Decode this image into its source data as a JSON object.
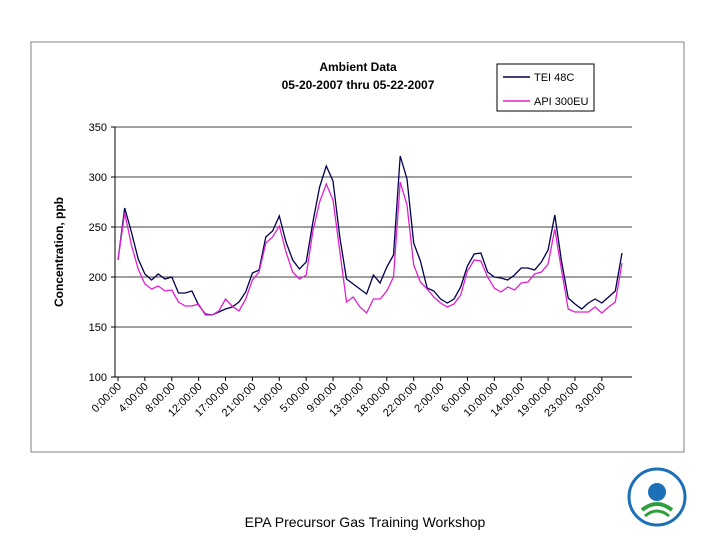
{
  "chart_data": {
    "type": "line",
    "title": "Ambient Data",
    "subtitle": "05-20-2007 thru 05-22-2007",
    "y_label": "Concentration, ppb",
    "categories": [
      "0:00:00",
      null,
      null,
      null,
      "4:00:00",
      null,
      null,
      null,
      "8:00:00",
      null,
      null,
      null,
      "12:00:00",
      null,
      null,
      null,
      "17:00:00",
      null,
      null,
      null,
      "21:00:00",
      null,
      null,
      null,
      "1:00:00",
      null,
      null,
      null,
      "5:00:00",
      null,
      null,
      null,
      "9:00:00",
      null,
      null,
      null,
      "13:00:00",
      null,
      null,
      null,
      "18:00:00",
      null,
      null,
      null,
      "22:00:00",
      null,
      null,
      null,
      "2:00:00",
      null,
      null,
      null,
      "6:00:00",
      null,
      null,
      null,
      "10:00:00",
      null,
      null,
      null,
      "14:00:00",
      null,
      null,
      null,
      "19:00:00",
      null,
      null,
      null,
      "23:00:00",
      null,
      null,
      null,
      "3:00:00",
      null,
      null,
      null
    ],
    "series": [
      {
        "name": "TEI 48C",
        "color": "#000050",
        "values": [
          217,
          269,
          245,
          218,
          203,
          197,
          203,
          198,
          200,
          184,
          184,
          186,
          172,
          163,
          162,
          165,
          168,
          170,
          175,
          185,
          204,
          207,
          240,
          246,
          261,
          235,
          217,
          208,
          215,
          255,
          290,
          311,
          296,
          240,
          198,
          193,
          188,
          183,
          202,
          194,
          210,
          222,
          321,
          298,
          234,
          216,
          189,
          186,
          178,
          174,
          178,
          190,
          211,
          223,
          224,
          205,
          200,
          199,
          197,
          202,
          209,
          209,
          207,
          215,
          227,
          262,
          216,
          179,
          173,
          168,
          174,
          178,
          174,
          180,
          186,
          224
        ]
      },
      {
        "name": "API 300EU",
        "color": "#e020d0",
        "values": [
          217,
          264,
          232,
          208,
          193,
          188,
          191,
          186,
          187,
          175,
          171,
          171,
          173,
          162,
          162,
          166,
          178,
          171,
          166,
          178,
          197,
          205,
          234,
          240,
          251,
          225,
          205,
          198,
          202,
          246,
          275,
          293,
          277,
          226,
          175,
          180,
          170,
          164,
          178,
          178,
          186,
          200,
          295,
          272,
          212,
          195,
          188,
          180,
          174,
          170,
          173,
          182,
          206,
          217,
          216,
          200,
          189,
          185,
          190,
          187,
          194,
          195,
          203,
          205,
          213,
          248,
          207,
          168,
          165,
          165,
          165,
          170,
          164,
          170,
          175,
          214
        ]
      }
    ],
    "ylim": [
      100,
      350
    ],
    "yticks": [
      100,
      150,
      200,
      250,
      300,
      350
    ],
    "grid": true
  },
  "footer": "EPA Precursor Gas Training Workshop"
}
